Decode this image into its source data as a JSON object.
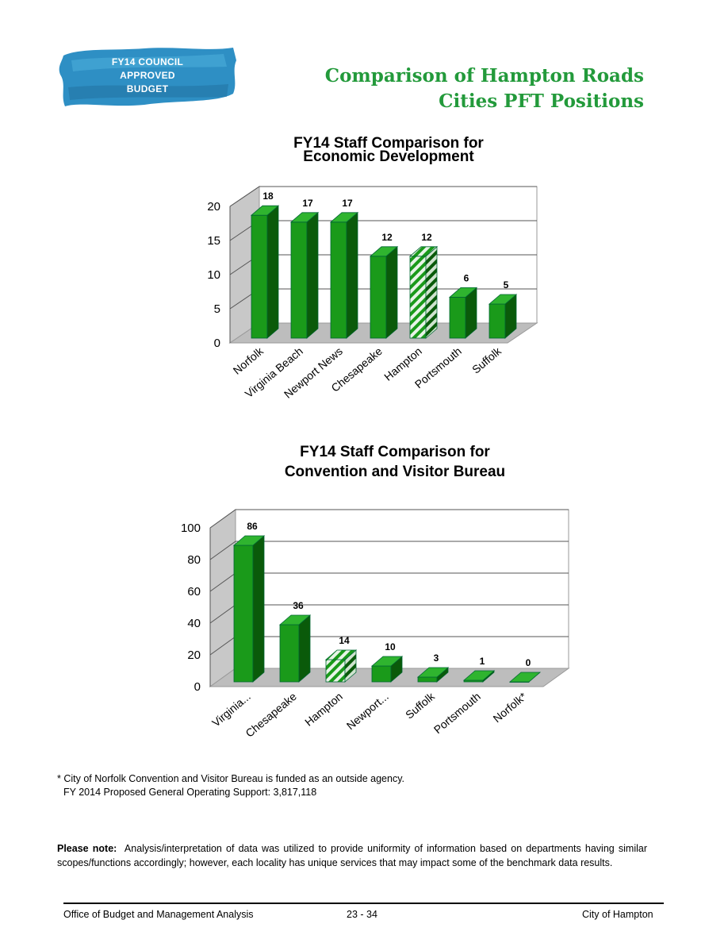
{
  "badge": {
    "lines": [
      "FY14 COUNCIL",
      "APPROVED",
      "BUDGET"
    ]
  },
  "header": {
    "title_line1": "Comparison of Hampton Roads",
    "title_line2": "Cities PFT Positions"
  },
  "colors": {
    "bar_front": "#1a9a1a",
    "bar_side": "#0a5a0a",
    "bar_top": "#2fb42f",
    "title_green": "#239a3b",
    "badge_blue": "#2e8fc4"
  },
  "chart_data": [
    {
      "type": "bar",
      "title": [
        "FY14 Staff Comparison for",
        "Economic Development"
      ],
      "categories": [
        "Norfolk",
        "Virginia Beach",
        "Newport News",
        "Chesapeake",
        "Hampton",
        "Portsmouth",
        "Suffolk"
      ],
      "values": [
        18,
        17,
        17,
        12,
        12,
        6,
        5
      ],
      "highlight": "Hampton",
      "ylim": [
        0,
        20
      ],
      "yticks": [
        0,
        5,
        10,
        15,
        20
      ],
      "grid": true,
      "legend": "none"
    },
    {
      "type": "bar",
      "title": [
        "FY14 Staff Comparison for",
        "Convention and Visitor Bureau"
      ],
      "categories": [
        "Virginia...",
        "Chesapeake",
        "Hampton",
        "Newport...",
        "Suffolk",
        "Portsmouth",
        "Norfolk*"
      ],
      "values": [
        86,
        36,
        14,
        10,
        3,
        1,
        0
      ],
      "highlight": "Hampton",
      "ylim": [
        0,
        100
      ],
      "yticks": [
        0,
        20,
        40,
        60,
        80,
        100
      ],
      "grid": true,
      "legend": "none"
    }
  ],
  "footnote": {
    "line1": "* City of Norfolk Convention and Visitor Bureau is funded as an outside agency.",
    "line2": "FY 2014 Proposed General Operating Support: 3,817,118"
  },
  "note": {
    "label": "Please note:",
    "text": "Analysis/interpretation of data was utilized to provide uniformity of information based on departments having similar scopes/functions accordingly; however, each locality has unique services that may impact some of the benchmark data results."
  },
  "footer": {
    "left": "Office of Budget and Management Analysis",
    "center": "23 - 34",
    "right": "City of Hampton"
  }
}
